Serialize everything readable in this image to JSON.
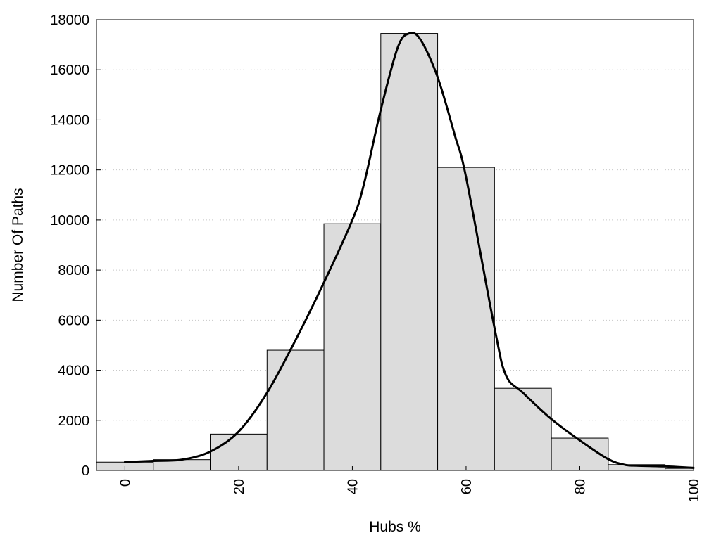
{
  "chart_data": {
    "type": "bar",
    "title": "",
    "xlabel": "Hubs %",
    "ylabel": "Number Of Paths",
    "xlim": [
      -5,
      100
    ],
    "ylim": [
      0,
      18000
    ],
    "grid": "horizontal-dotted",
    "x_ticks": [
      0,
      20,
      40,
      60,
      80,
      100
    ],
    "y_ticks": [
      0,
      2000,
      4000,
      6000,
      8000,
      10000,
      12000,
      14000,
      16000,
      18000
    ],
    "bins": [
      {
        "x0": -5,
        "x1": 5,
        "value": 330
      },
      {
        "x0": 5,
        "x1": 15,
        "value": 430
      },
      {
        "x0": 15,
        "x1": 25,
        "value": 1450
      },
      {
        "x0": 25,
        "x1": 35,
        "value": 4800
      },
      {
        "x0": 35,
        "x1": 45,
        "value": 9850
      },
      {
        "x0": 45,
        "x1": 55,
        "value": 17450
      },
      {
        "x0": 55,
        "x1": 65,
        "value": 12100
      },
      {
        "x0": 65,
        "x1": 75,
        "value": 3280
      },
      {
        "x0": 75,
        "x1": 85,
        "value": 1290
      },
      {
        "x0": 85,
        "x1": 95,
        "value": 230
      },
      {
        "x0": 95,
        "x1": 105,
        "value": 80
      }
    ],
    "density_curve": {
      "x": [
        0,
        5,
        10,
        15,
        20,
        25,
        30,
        35,
        40,
        42,
        45,
        48,
        50,
        52,
        55,
        58,
        60,
        65,
        67,
        70,
        75,
        80,
        85,
        88,
        90,
        95,
        100
      ],
      "y": [
        330,
        380,
        430,
        750,
        1550,
        3100,
        5200,
        7500,
        10000,
        11400,
        14400,
        16900,
        17450,
        17200,
        15700,
        13400,
        11700,
        5700,
        3800,
        3100,
        2050,
        1200,
        450,
        220,
        190,
        160,
        100
      ]
    }
  }
}
